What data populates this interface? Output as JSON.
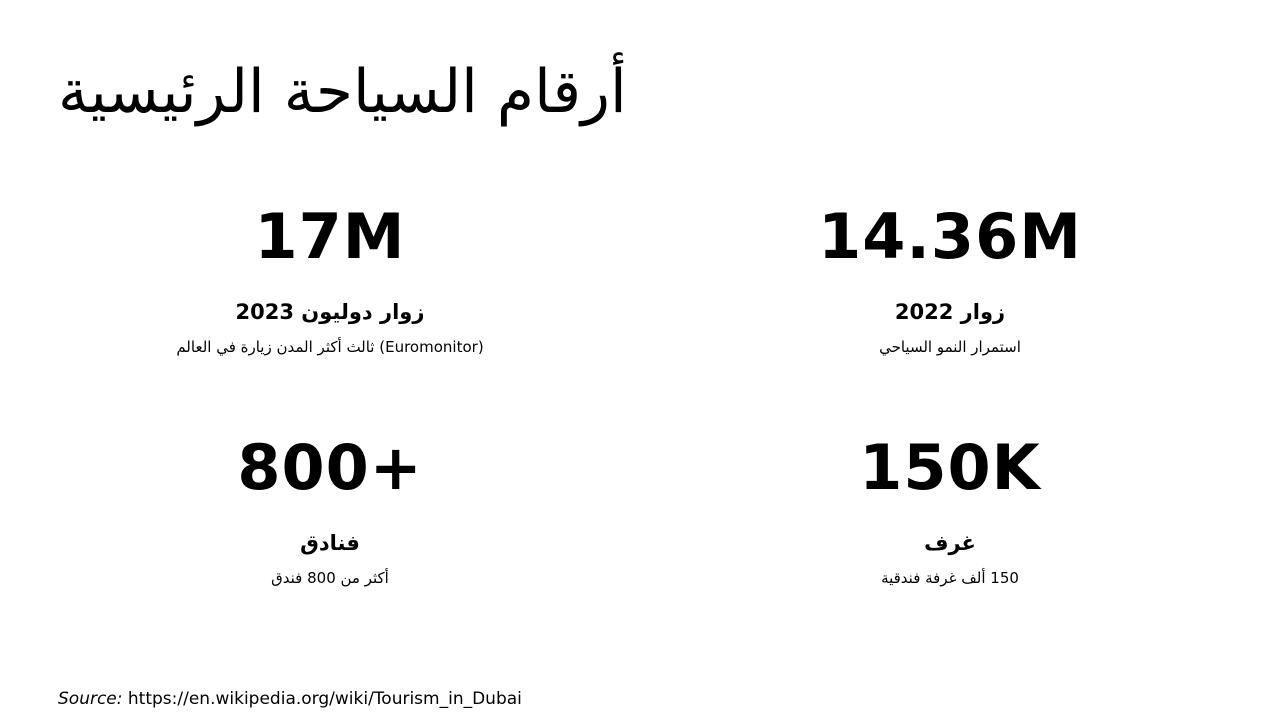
{
  "title": "أرقام السياحة الرئيسية",
  "stats": [
    {
      "value": "17M",
      "label": "زوار دوليون 2023",
      "description": "(Euromonitor) ثالث أكثر المدن زيارة في العالم"
    },
    {
      "value": "14.36M",
      "label": "زوار 2022",
      "description": "استمرار النمو السياحي"
    },
    {
      "value": "800+",
      "label": "فنادق",
      "description": "أكثر من 800 فندق"
    },
    {
      "value": "150K",
      "label": "غرف",
      "description": "150 ألف غرفة فندقية"
    }
  ],
  "source": {
    "prefix": "Source:",
    "url": "https://en.wikipedia.org/wiki/Tourism_in_Dubai"
  }
}
